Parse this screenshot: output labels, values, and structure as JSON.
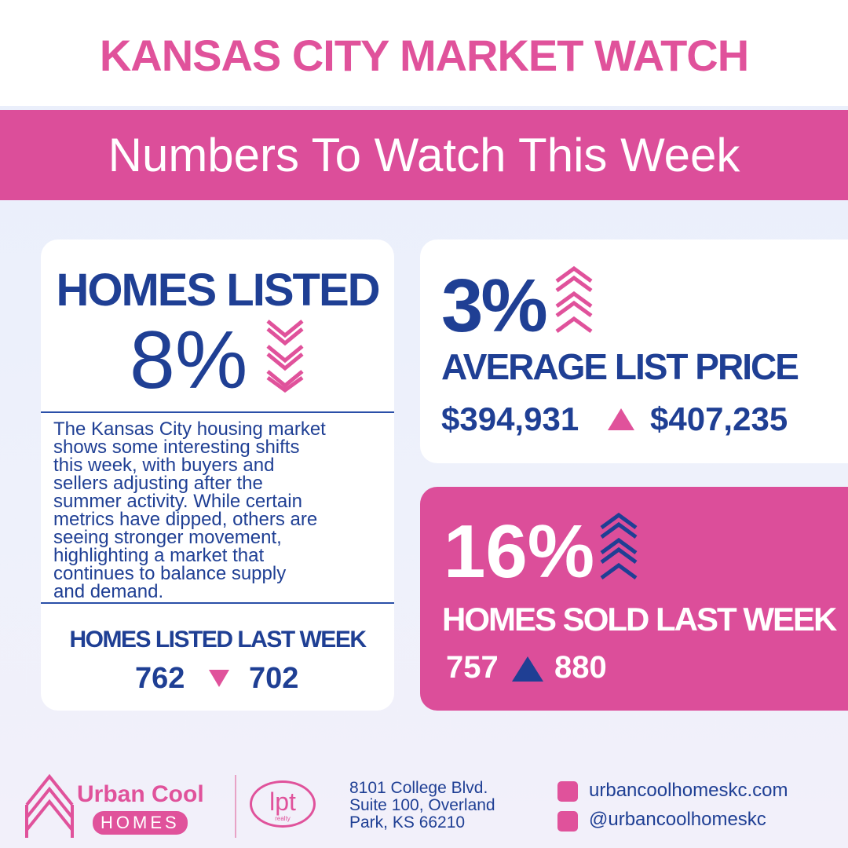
{
  "header": {
    "title": "KANSAS CITY MARKET WATCH",
    "subtitle": "Numbers To Watch This Week"
  },
  "homes_listed": {
    "title": "HOMES LISTED",
    "change": "8%",
    "description": [
      "The Kansas City housing market",
      "shows some interesting shifts",
      "this week, with buyers and",
      "sellers adjusting after the",
      "summer activity. While certain",
      "metrics have dipped, others are",
      "seeing stronger movement,",
      "highlighting a market that",
      "continues to balance supply",
      "and demand."
    ],
    "footer_label": "HOMES LISTED LAST WEEK",
    "from": "762",
    "to": "702"
  },
  "average_list_price": {
    "change": "3%",
    "title": "AVERAGE LIST PRICE",
    "from": "$394,931",
    "to": "$407,235"
  },
  "homes_sold": {
    "change": "16%",
    "title": "HOMES SOLD LAST WEEK",
    "from": "757",
    "to": "880"
  },
  "footer": {
    "brand_top": "Urban Cool",
    "brand_bottom": "HOMES",
    "partner": "lpt",
    "partner_sub": "realty",
    "address": [
      "8101 College Blvd.",
      "Suite 100, Overland",
      "Park, KS 66210"
    ],
    "website": "urbancoolhomeskc.com",
    "handle": "@urbancoolhomeskc"
  }
}
